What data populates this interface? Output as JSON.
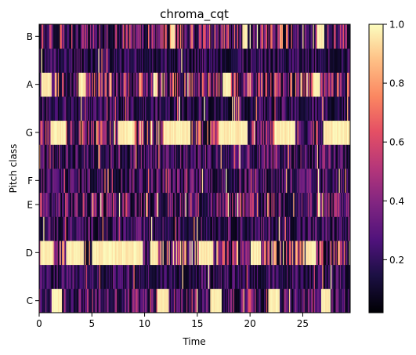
{
  "chart_data": {
    "type": "heatmap",
    "title": "chroma_cqt",
    "xlabel": "Time",
    "ylabel": "Pitch class",
    "xlim": [
      0,
      29.5
    ],
    "x_ticks": [
      0,
      5,
      10,
      15,
      20,
      25
    ],
    "y_categories": [
      "C",
      "C#",
      "D",
      "D#",
      "E",
      "F",
      "F#",
      "G",
      "G#",
      "A",
      "A#",
      "B"
    ],
    "y_tick_labels_shown": [
      "C",
      "D",
      "E",
      "F",
      "G",
      "A",
      "B"
    ],
    "colorbar": {
      "colormap": "magma",
      "range": [
        0.02,
        1.0
      ],
      "ticks": [
        0.2,
        0.4,
        0.6,
        0.8,
        1.0
      ]
    },
    "grid": false,
    "saturated_segments": {
      "C": [
        [
          1.2,
          2.2
        ],
        [
          11.2,
          12.3
        ],
        [
          16.2,
          17.3
        ],
        [
          21.7,
          22.8
        ],
        [
          26.7,
          27.6
        ]
      ],
      "D": [
        [
          0.1,
          1.4
        ],
        [
          2.6,
          4.2
        ],
        [
          5.0,
          9.8
        ],
        [
          10.5,
          11.2
        ],
        [
          15.1,
          16.5
        ],
        [
          20.1,
          21.0
        ],
        [
          25.3,
          26.3
        ]
      ],
      "G": [
        [
          1.1,
          2.6
        ],
        [
          7.5,
          9.0
        ],
        [
          11.8,
          14.4
        ],
        [
          17.0,
          19.8
        ],
        [
          22.3,
          24.3
        ],
        [
          26.9,
          29.5
        ]
      ],
      "A": [
        [
          0.2,
          1.2
        ],
        [
          3.7,
          4.4
        ],
        [
          10.8,
          11.2
        ],
        [
          17.4,
          18.2
        ],
        [
          26.0,
          26.6
        ]
      ],
      "B": [
        [
          12.5,
          12.9
        ],
        [
          19.3,
          19.8
        ],
        [
          26.4,
          27.0
        ]
      ]
    },
    "row_activity": {
      "C": 0.4,
      "C#": 0.25,
      "D": 0.75,
      "D#": 0.3,
      "E": 0.45,
      "F": 0.35,
      "F#": 0.35,
      "G": 0.6,
      "G#": 0.25,
      "A": 0.6,
      "A#": 0.25,
      "B": 0.55
    }
  }
}
